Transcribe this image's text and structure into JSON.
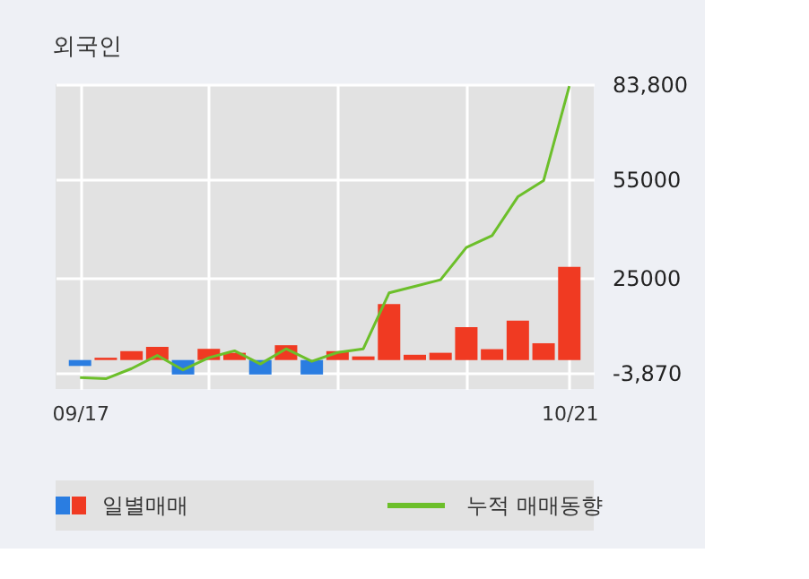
{
  "chart_data": {
    "type": "bar",
    "title": "외국인",
    "categories": [
      "09/17",
      null,
      null,
      null,
      null,
      null,
      null,
      null,
      null,
      null,
      null,
      null,
      null,
      null,
      null,
      null,
      null,
      null,
      null,
      "10/21"
    ],
    "series": [
      {
        "name": "일별매매",
        "values": [
          -1800,
          700,
          2700,
          4000,
          -4400,
          3400,
          2200,
          -4400,
          4500,
          -4400,
          2700,
          1100,
          17000,
          1600,
          2200,
          10000,
          3300,
          12000,
          5100,
          28300
        ],
        "colors": [
          "#2a7de1",
          "#f03a22",
          "#f03a22",
          "#f03a22",
          "#2a7de1",
          "#f03a22",
          "#f03a22",
          "#2a7de1",
          "#f03a22",
          "#2a7de1",
          "#f03a22",
          "#f03a22",
          "#f03a22",
          "#f03a22",
          "#f03a22",
          "#f03a22",
          "#f03a22",
          "#f03a22",
          "#f03a22",
          "#f03a22"
        ]
      },
      {
        "name": "누적 매매동향",
        "type": "line",
        "color": "#6cbf2a",
        "values": [
          -5300,
          -5700,
          -2600,
          1400,
          -3000,
          700,
          2800,
          -1200,
          3400,
          -400,
          2300,
          3400,
          20400,
          22400,
          24400,
          34200,
          37800,
          49600,
          54500,
          83200
        ]
      }
    ],
    "ylim": [
      -8800,
      83800
    ],
    "yticks": [
      {
        "value": -3870,
        "label": "-3,870"
      },
      25000,
      55000,
      {
        "value": 83800,
        "label": "83,800"
      }
    ],
    "grid": true,
    "legend": "bottom"
  }
}
